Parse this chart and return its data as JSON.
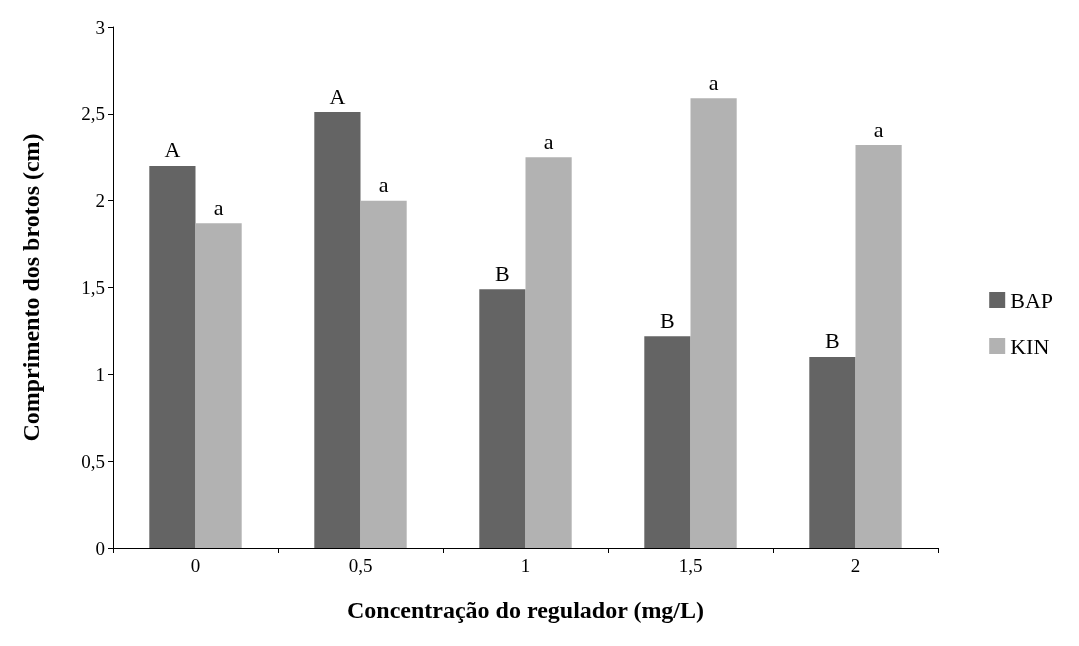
{
  "chart_data": {
    "type": "bar",
    "xlabel": "Concentração do regulador (mg/L)",
    "ylabel": "Comprimento dos brotos (cm)",
    "categories": [
      "0",
      "0,5",
      "1",
      "1,5",
      "2"
    ],
    "series": [
      {
        "name": "BAP",
        "color": "#646464",
        "values": [
          2.2,
          2.51,
          1.49,
          1.22,
          1.1
        ]
      },
      {
        "name": "KIN",
        "color": "#b2b2b2",
        "values": [
          1.87,
          2.0,
          2.25,
          2.59,
          2.32
        ]
      }
    ],
    "annotations": [
      {
        "text": "A",
        "x": "0",
        "y": 2.2
      },
      {
        "text": "A",
        "x": "0,5",
        "y": 2.51
      },
      {
        "text": "B",
        "x": "1",
        "y": 1.49
      },
      {
        "text": "B",
        "x": "1,5",
        "y": 1.22
      },
      {
        "text": "B",
        "x": "2",
        "y": 1.1
      },
      {
        "text": "a",
        "x": "0",
        "y": 1.87
      },
      {
        "text": "a",
        "x": "0,5",
        "y": 2.0
      },
      {
        "text": "a",
        "x": "1",
        "y": 2.25
      },
      {
        "text": "a",
        "x": "1,5",
        "y": 2.59
      },
      {
        "text": "a",
        "x": "2",
        "y": 2.32
      }
    ],
    "ylim": [
      0,
      3
    ],
    "yticks": [
      0,
      {
        "value": 0.5,
        "label": "0,5"
      },
      1,
      {
        "value": 1.5,
        "label": "1,5"
      },
      2,
      {
        "value": 2.5,
        "label": "2,5"
      },
      3
    ],
    "grid": false,
    "legend": "right"
  }
}
